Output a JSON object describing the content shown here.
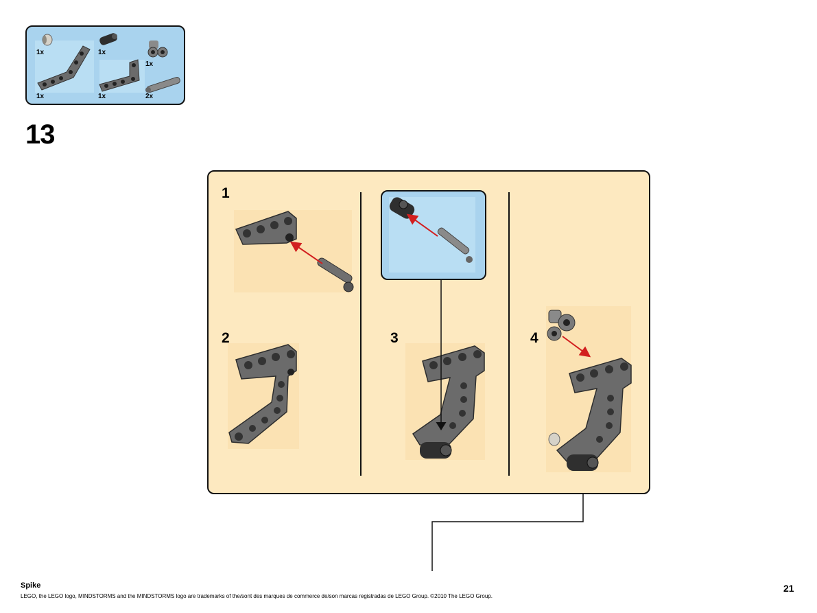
{
  "parts_list": {
    "items": [
      {
        "name": "bushing",
        "qty": "1x"
      },
      {
        "name": "axle-pin-black",
        "qty": "1x"
      },
      {
        "name": "cross-block-gray",
        "qty": "1x"
      },
      {
        "name": "bent-beam-gray",
        "qty": "1x"
      },
      {
        "name": "l-beam-gray",
        "qty": "1x"
      },
      {
        "name": "axle-pin-gray",
        "qty": "2x"
      }
    ]
  },
  "step": {
    "number": "13"
  },
  "sub_steps": [
    {
      "number": "1"
    },
    {
      "number": "2"
    },
    {
      "number": "3"
    },
    {
      "number": "4"
    }
  ],
  "colors": {
    "panel_bg": "#fde9c0",
    "callout_bg": "#a9d3ee",
    "part_gray": "#6b6b6b",
    "part_dark": "#3a3a3a",
    "arrow_red": "#d21f1f"
  },
  "footer": {
    "title": "Spike",
    "legal": "LEGO, the LEGO logo, MINDSTORMS and the MINDSTORMS logo are trademarks of the/sont des marques de commerce de/son marcas registradas de LEGO Group. ©2010 The LEGO Group.",
    "page_number": "21"
  }
}
